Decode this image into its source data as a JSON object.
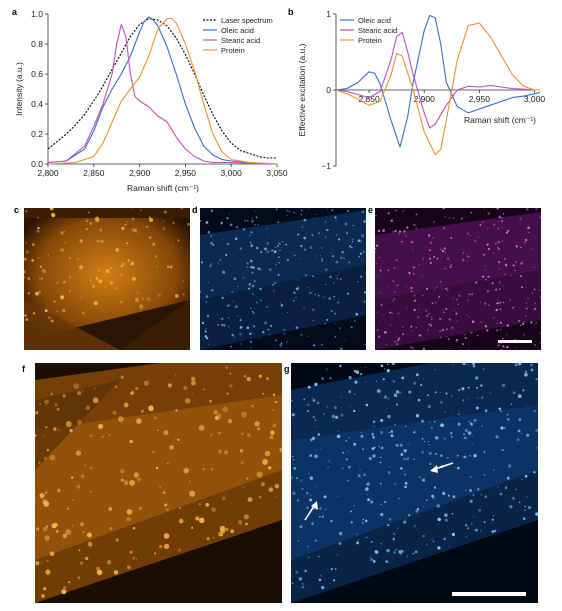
{
  "chart_data": [
    {
      "panel": "a",
      "type": "line",
      "xlabel": "Raman shift (cm⁻¹)",
      "ylabel": "Intensity (a.u.)",
      "xlim": [
        2800,
        3050
      ],
      "ylim": [
        0.0,
        1.0
      ],
      "xticks": [
        "2,800",
        "2,850",
        "2,900",
        "2,950",
        "3,000",
        "3,050"
      ],
      "xtick_values": [
        2800,
        2850,
        2900,
        2950,
        3000,
        3050
      ],
      "yticks": [
        "0.0",
        "0.2",
        "0.4",
        "0.6",
        "0.8",
        "1.0"
      ],
      "ytick_values": [
        0,
        0.2,
        0.4,
        0.6,
        0.8,
        1.0
      ],
      "legend_position": "top-right",
      "series": [
        {
          "name": "Laser spectrum",
          "color": "#000000",
          "dash": "dotted",
          "x": [
            2800,
            2810,
            2820,
            2830,
            2840,
            2850,
            2860,
            2870,
            2880,
            2890,
            2900,
            2910,
            2920,
            2930,
            2940,
            2950,
            2960,
            2970,
            2980,
            2990,
            3000,
            3010,
            3020,
            3030,
            3040,
            3050
          ],
          "values": [
            0.1,
            0.15,
            0.2,
            0.26,
            0.33,
            0.42,
            0.52,
            0.63,
            0.74,
            0.85,
            0.93,
            0.97,
            0.96,
            0.92,
            0.84,
            0.73,
            0.6,
            0.46,
            0.33,
            0.22,
            0.14,
            0.09,
            0.07,
            0.05,
            0.04,
            0.04
          ]
        },
        {
          "name": "Oleic acid",
          "color": "#3a6fc4",
          "dash": "solid",
          "x": [
            2800,
            2820,
            2840,
            2850,
            2860,
            2870,
            2880,
            2890,
            2900,
            2905,
            2910,
            2915,
            2920,
            2930,
            2940,
            2950,
            2960,
            2970,
            2980,
            2990,
            3000,
            3020,
            3050
          ],
          "values": [
            0.01,
            0.02,
            0.1,
            0.22,
            0.38,
            0.5,
            0.6,
            0.72,
            0.88,
            0.95,
            0.98,
            0.96,
            0.92,
            0.78,
            0.6,
            0.4,
            0.24,
            0.12,
            0.06,
            0.03,
            0.02,
            0.01,
            0.0
          ]
        },
        {
          "name": "Stearic acid",
          "color": "#c24fbf",
          "dash": "solid",
          "x": [
            2800,
            2820,
            2840,
            2850,
            2860,
            2870,
            2875,
            2880,
            2885,
            2890,
            2895,
            2900,
            2910,
            2920,
            2930,
            2940,
            2950,
            2960,
            2970,
            2980,
            3000,
            3050
          ],
          "values": [
            0.01,
            0.02,
            0.12,
            0.25,
            0.4,
            0.6,
            0.8,
            0.93,
            0.85,
            0.6,
            0.45,
            0.42,
            0.38,
            0.32,
            0.28,
            0.18,
            0.1,
            0.05,
            0.02,
            0.01,
            0.01,
            0.0
          ]
        },
        {
          "name": "Protein",
          "color": "#f0922e",
          "dash": "solid",
          "x": [
            2800,
            2830,
            2850,
            2860,
            2870,
            2880,
            2890,
            2900,
            2910,
            2920,
            2930,
            2935,
            2940,
            2950,
            2960,
            2970,
            2980,
            2990,
            3000,
            3020,
            3050
          ],
          "values": [
            0.0,
            0.01,
            0.05,
            0.14,
            0.28,
            0.42,
            0.5,
            0.58,
            0.72,
            0.9,
            0.97,
            0.97,
            0.94,
            0.8,
            0.62,
            0.4,
            0.2,
            0.08,
            0.03,
            0.01,
            0.0
          ]
        }
      ]
    },
    {
      "panel": "b",
      "type": "line",
      "xlabel": "Raman shift (cm⁻¹)",
      "ylabel": "Effective excitation (a.u.)",
      "xlim": [
        2820,
        3005
      ],
      "ylim": [
        -1,
        1
      ],
      "xticks": [
        "2,850",
        "2,900",
        "2,950",
        "3,000"
      ],
      "xtick_values": [
        2850,
        2900,
        2950,
        3000
      ],
      "yticks": [
        "1",
        "0",
        "−1"
      ],
      "ytick_values": [
        1,
        0,
        -1
      ],
      "legend_position": "top-left",
      "series": [
        {
          "name": "Oleic acid",
          "color": "#3a6fc4",
          "x": [
            2820,
            2830,
            2840,
            2850,
            2855,
            2860,
            2870,
            2878,
            2885,
            2890,
            2900,
            2905,
            2910,
            2915,
            2920,
            2930,
            2940,
            2950,
            2960,
            2970,
            2980,
            2990,
            3000,
            3005
          ],
          "values": [
            0.0,
            0.02,
            0.1,
            0.24,
            0.22,
            0.08,
            -0.4,
            -0.75,
            -0.35,
            0.1,
            0.78,
            0.98,
            0.95,
            0.6,
            0.1,
            -0.22,
            -0.3,
            -0.25,
            -0.2,
            -0.15,
            -0.1,
            -0.08,
            -0.05,
            -0.03
          ]
        },
        {
          "name": "Stearic acid",
          "color": "#c24fbf",
          "x": [
            2820,
            2830,
            2840,
            2850,
            2860,
            2870,
            2875,
            2880,
            2885,
            2890,
            2900,
            2905,
            2910,
            2920,
            2930,
            2940,
            2950,
            2960,
            2970,
            2980,
            2990,
            3000,
            3005
          ],
          "values": [
            0.0,
            -0.02,
            -0.06,
            -0.1,
            -0.02,
            0.4,
            0.7,
            0.76,
            0.5,
            0.2,
            -0.3,
            -0.5,
            -0.45,
            -0.2,
            0.0,
            0.05,
            0.04,
            0.06,
            0.04,
            0.02,
            0.01,
            0.0,
            0.0
          ]
        },
        {
          "name": "Protein",
          "color": "#f0922e",
          "x": [
            2820,
            2830,
            2840,
            2850,
            2860,
            2870,
            2875,
            2880,
            2890,
            2900,
            2910,
            2915,
            2920,
            2930,
            2940,
            2950,
            2960,
            2970,
            2980,
            2990,
            3000,
            3005
          ],
          "values": [
            0.0,
            -0.05,
            -0.12,
            -0.2,
            -0.15,
            0.2,
            0.48,
            0.45,
            0.0,
            -0.55,
            -0.85,
            -0.78,
            -0.4,
            0.4,
            0.85,
            0.88,
            0.7,
            0.45,
            0.2,
            0.05,
            0.0,
            0.0
          ]
        }
      ]
    }
  ],
  "panels": {
    "a": "a",
    "b": "b",
    "c": "c",
    "d": "d",
    "e": "e",
    "f": "f",
    "g": "g"
  },
  "images": {
    "c": {
      "tint": "#e8901c",
      "description_color": "orange"
    },
    "d": {
      "tint": "#3f8fe0",
      "description_color": "blue"
    },
    "e": {
      "tint": "#b33fb8",
      "description_color": "magenta"
    },
    "f": {
      "tint": "#e8901c",
      "description_color": "orange"
    },
    "g": {
      "tint": "#3f8fe0",
      "description_color": "blue"
    }
  }
}
